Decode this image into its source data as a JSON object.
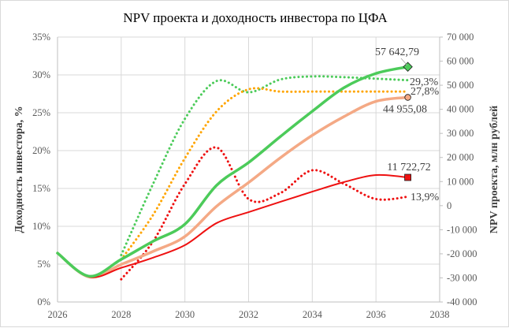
{
  "chart_data": {
    "type": "line",
    "title": "NPV проекта и доходность инвестора по ЦФА",
    "xlabel": "",
    "ylabel_left": "Доходность инвестора, %",
    "ylabel_right": "NPV проекта, млн рублей",
    "xlim": [
      2026,
      2038
    ],
    "ylim_left": [
      0,
      35
    ],
    "ylim_right": [
      -40000,
      70000
    ],
    "grid": true,
    "x_ticks": [
      "2026",
      "2028",
      "2030",
      "2032",
      "2034",
      "2036",
      "2038"
    ],
    "y_left_ticks": [
      "0%",
      "5%",
      "10%",
      "15%",
      "20%",
      "25%",
      "30%",
      "35%"
    ],
    "y_right_ticks": [
      "-40 000",
      "-30 000",
      "-20 000",
      "-10 000",
      "0",
      "10 000",
      "20 000",
      "30 000",
      "40 000",
      "50 000",
      "60 000",
      "70 000"
    ],
    "series": [
      {
        "name": "NPV (зелёный)",
        "axis": "right",
        "style": "solid",
        "color": "#4CCB5A",
        "x": [
          2026,
          2027,
          2028,
          2029,
          2030,
          2031,
          2032,
          2033,
          2034,
          2035,
          2036,
          2037
        ],
        "values": [
          -19700,
          -29300,
          -22300,
          -14800,
          -7700,
          8500,
          17900,
          28700,
          39200,
          49000,
          54900,
          57642.79
        ],
        "end_label": "57 642,79",
        "marker": "diamond"
      },
      {
        "name": "NPV (бежевый)",
        "axis": "right",
        "style": "solid",
        "color": "#F4A985",
        "x": [
          2026,
          2027,
          2028,
          2029,
          2030,
          2031,
          2032,
          2033,
          2034,
          2035,
          2036,
          2037
        ],
        "values": [
          -19700,
          -29600,
          -24400,
          -19000,
          -12800,
          -200,
          9600,
          19900,
          29200,
          37000,
          43300,
          44955.08
        ],
        "end_label": "44 955,08",
        "marker": "circle"
      },
      {
        "name": "NPV (красный)",
        "axis": "right",
        "style": "solid",
        "color": "#EE1111",
        "x": [
          2026,
          2027,
          2028,
          2029,
          2030,
          2031,
          2032,
          2033,
          2034,
          2035,
          2036,
          2037
        ],
        "values": [
          -19700,
          -29600,
          -25800,
          -21600,
          -16400,
          -7200,
          -2700,
          1600,
          5800,
          9800,
          12700,
          11722.72
        ],
        "end_label": "11 722,72",
        "marker": "square"
      },
      {
        "name": "Доходность (зелёный)",
        "axis": "left",
        "style": "dotted",
        "color": "#4CCB5A",
        "x": [
          2028,
          2029,
          2030,
          2031,
          2032,
          2033,
          2034,
          2035,
          2036,
          2037
        ],
        "values": [
          6.2,
          15.6,
          24.2,
          29.2,
          27.7,
          29.4,
          29.8,
          29.7,
          29.5,
          29.3
        ],
        "end_label": "29,3%"
      },
      {
        "name": "Доходность (оранжевый)",
        "axis": "left",
        "style": "dotted",
        "color": "#FFA500",
        "x": [
          2028,
          2029,
          2030,
          2031,
          2032,
          2033,
          2034,
          2035,
          2036,
          2037
        ],
        "values": [
          5.6,
          11.5,
          19.0,
          25.2,
          28.1,
          27.8,
          27.8,
          27.8,
          27.8,
          27.8
        ],
        "end_label": "27,8%"
      },
      {
        "name": "Доходность (красный)",
        "axis": "left",
        "style": "dotted",
        "color": "#EE1111",
        "x": [
          2028,
          2029,
          2030,
          2031,
          2032,
          2033,
          2034,
          2035,
          2036,
          2037
        ],
        "values": [
          3.0,
          8.0,
          15.6,
          20.4,
          13.6,
          14.4,
          17.4,
          15.6,
          13.6,
          13.9
        ],
        "end_label": "13,9%"
      }
    ]
  }
}
